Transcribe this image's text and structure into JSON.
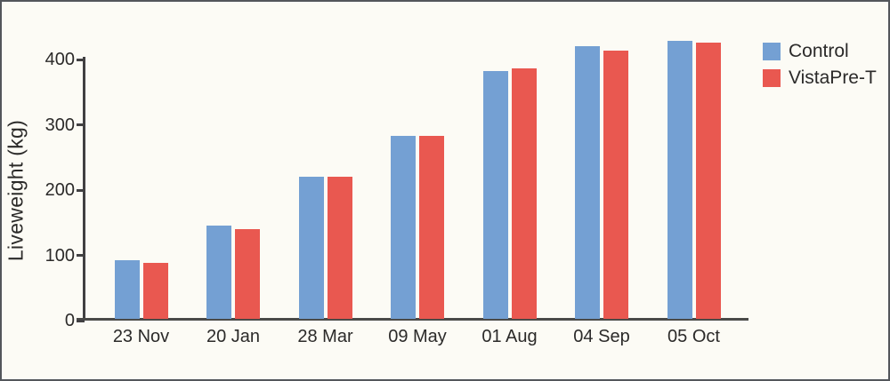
{
  "chart_data": {
    "type": "bar",
    "title": "",
    "xlabel": "",
    "ylabel": "Liveweight (kg)",
    "categories": [
      "23 Nov",
      "20 Jan",
      "28 Mar",
      "09 May",
      "01 Aug",
      "04 Sep",
      "05 Oct"
    ],
    "series": [
      {
        "name": "Control",
        "color": "#74A0D3",
        "values": [
          90,
          143,
          218,
          281,
          380,
          419,
          427
        ]
      },
      {
        "name": "VistaPre-T",
        "color": "#E95850",
        "values": [
          87,
          138,
          218,
          281,
          384,
          412,
          424
        ]
      }
    ],
    "y_ticks": [
      0,
      100,
      200,
      300,
      400
    ],
    "ylim": [
      0,
      440
    ],
    "grid": false,
    "legend_position": "top-right",
    "colors": {
      "background": "#FCFBF5",
      "frame_border": "#53565B",
      "axis": "#414042",
      "text": "#2B2A29"
    }
  }
}
